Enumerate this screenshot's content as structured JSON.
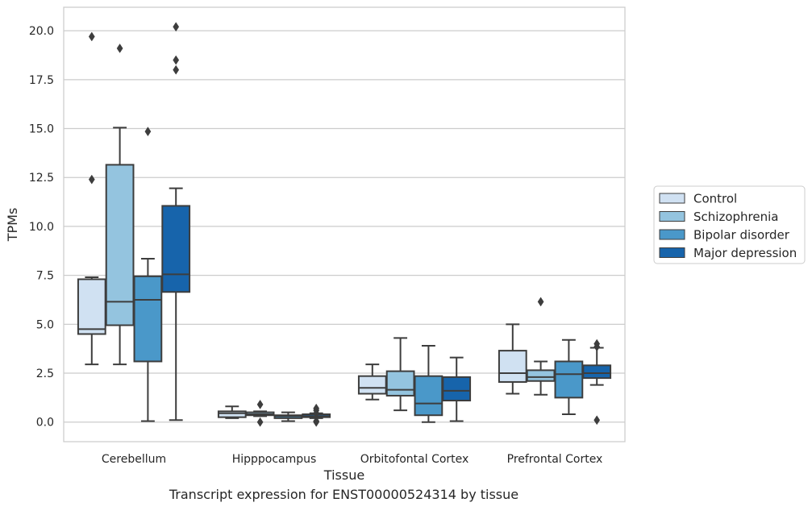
{
  "caption": "Transcript expression for ENST00000524314 by tissue",
  "chart_data": {
    "type": "box",
    "title": "",
    "xlabel": "Tissue",
    "ylabel": "TPMs",
    "ylim": [
      -1.0,
      21.2
    ],
    "yticks": [
      0.0,
      2.5,
      5.0,
      7.5,
      10.0,
      12.5,
      15.0,
      17.5,
      20.0
    ],
    "ytick_labels": [
      "0.0",
      "2.5",
      "5.0",
      "7.5",
      "10.0",
      "12.5",
      "15.0",
      "17.5",
      "20.0"
    ],
    "grid": "horizontal",
    "legend_position": "right",
    "categories": [
      "Cerebellum",
      "Hipppocampus",
      "Orbitofontal Cortex",
      "Prefrontal Cortex"
    ],
    "series": [
      {
        "name": "Control",
        "color": "#d0e1f2",
        "boxes": [
          {
            "whislo": 2.95,
            "q1": 4.5,
            "med": 4.75,
            "q3": 7.3,
            "whishi": 7.4,
            "fliers": [
              12.4,
              19.7
            ]
          },
          {
            "whislo": 0.2,
            "q1": 0.25,
            "med": 0.45,
            "q3": 0.55,
            "whishi": 0.8,
            "fliers": []
          },
          {
            "whislo": 1.15,
            "q1": 1.45,
            "med": 1.75,
            "q3": 2.35,
            "whishi": 2.95,
            "fliers": []
          },
          {
            "whislo": 1.45,
            "q1": 2.05,
            "med": 2.5,
            "q3": 3.65,
            "whishi": 5.0,
            "fliers": []
          }
        ]
      },
      {
        "name": "Schizophrenia",
        "color": "#94c4df",
        "boxes": [
          {
            "whislo": 2.95,
            "q1": 4.95,
            "med": 6.15,
            "q3": 13.15,
            "whishi": 15.05,
            "fliers": [
              19.1
            ]
          },
          {
            "whislo": 0.3,
            "q1": 0.35,
            "med": 0.4,
            "q3": 0.5,
            "whishi": 0.55,
            "fliers": [
              0.0,
              0.9
            ]
          },
          {
            "whislo": 0.6,
            "q1": 1.35,
            "med": 1.65,
            "q3": 2.6,
            "whishi": 4.3,
            "fliers": []
          },
          {
            "whislo": 1.4,
            "q1": 2.1,
            "med": 2.3,
            "q3": 2.65,
            "whishi": 3.1,
            "fliers": [
              6.15
            ]
          }
        ]
      },
      {
        "name": "Bipolar disorder",
        "color": "#4a98c9",
        "boxes": [
          {
            "whislo": 0.05,
            "q1": 3.1,
            "med": 6.25,
            "q3": 7.45,
            "whishi": 8.35,
            "fliers": [
              14.85
            ]
          },
          {
            "whislo": 0.05,
            "q1": 0.2,
            "med": 0.3,
            "q3": 0.35,
            "whishi": 0.5,
            "fliers": []
          },
          {
            "whislo": 0.0,
            "q1": 0.35,
            "med": 0.95,
            "q3": 2.35,
            "whishi": 3.9,
            "fliers": []
          },
          {
            "whislo": 0.4,
            "q1": 1.25,
            "med": 2.45,
            "q3": 3.1,
            "whishi": 4.2,
            "fliers": []
          }
        ]
      },
      {
        "name": "Major depression",
        "color": "#1764ab",
        "boxes": [
          {
            "whislo": 0.1,
            "q1": 6.65,
            "med": 7.55,
            "q3": 11.05,
            "whishi": 11.95,
            "fliers": [
              18.0,
              18.5,
              20.2
            ]
          },
          {
            "whislo": 0.2,
            "q1": 0.25,
            "med": 0.3,
            "q3": 0.4,
            "whishi": 0.45,
            "fliers": [
              0.0,
              0.05,
              0.45,
              0.6,
              0.7
            ]
          },
          {
            "whislo": 0.05,
            "q1": 1.1,
            "med": 1.6,
            "q3": 2.3,
            "whishi": 3.3,
            "fliers": []
          },
          {
            "whislo": 1.9,
            "q1": 2.25,
            "med": 2.5,
            "q3": 2.9,
            "whishi": 3.8,
            "fliers": [
              0.1,
              3.85,
              4.0
            ]
          }
        ]
      }
    ]
  }
}
